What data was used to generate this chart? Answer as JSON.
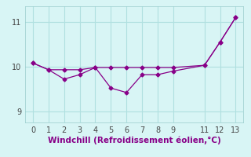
{
  "line1_x": [
    0,
    1,
    2,
    3,
    4,
    5,
    6,
    7,
    8,
    9,
    11,
    12,
    13
  ],
  "line1_y": [
    10.08,
    9.93,
    9.93,
    9.93,
    9.98,
    9.98,
    9.98,
    9.98,
    9.98,
    9.98,
    10.03,
    10.55,
    11.1
  ],
  "line2_x": [
    0,
    1,
    2,
    3,
    4,
    5,
    6,
    7,
    8,
    9,
    11,
    12,
    13
  ],
  "line2_y": [
    10.08,
    9.93,
    9.72,
    9.82,
    9.98,
    9.52,
    9.42,
    9.82,
    9.82,
    9.9,
    10.03,
    10.55,
    11.1
  ],
  "line_color": "#880088",
  "bg_color": "#d8f5f5",
  "grid_color": "#b0e0e0",
  "xlabel": "Windchill (Refroidissement éolien,°C)",
  "ylim": [
    8.75,
    11.35
  ],
  "xlim": [
    -0.5,
    13.5
  ],
  "yticks": [
    9,
    10,
    11
  ],
  "xticks": [
    0,
    1,
    2,
    3,
    4,
    5,
    6,
    7,
    8,
    9,
    11,
    12,
    13
  ],
  "xlabel_color": "#880088",
  "xlabel_fontsize": 7.5,
  "tick_labelsize": 7,
  "tick_color": "#444444"
}
